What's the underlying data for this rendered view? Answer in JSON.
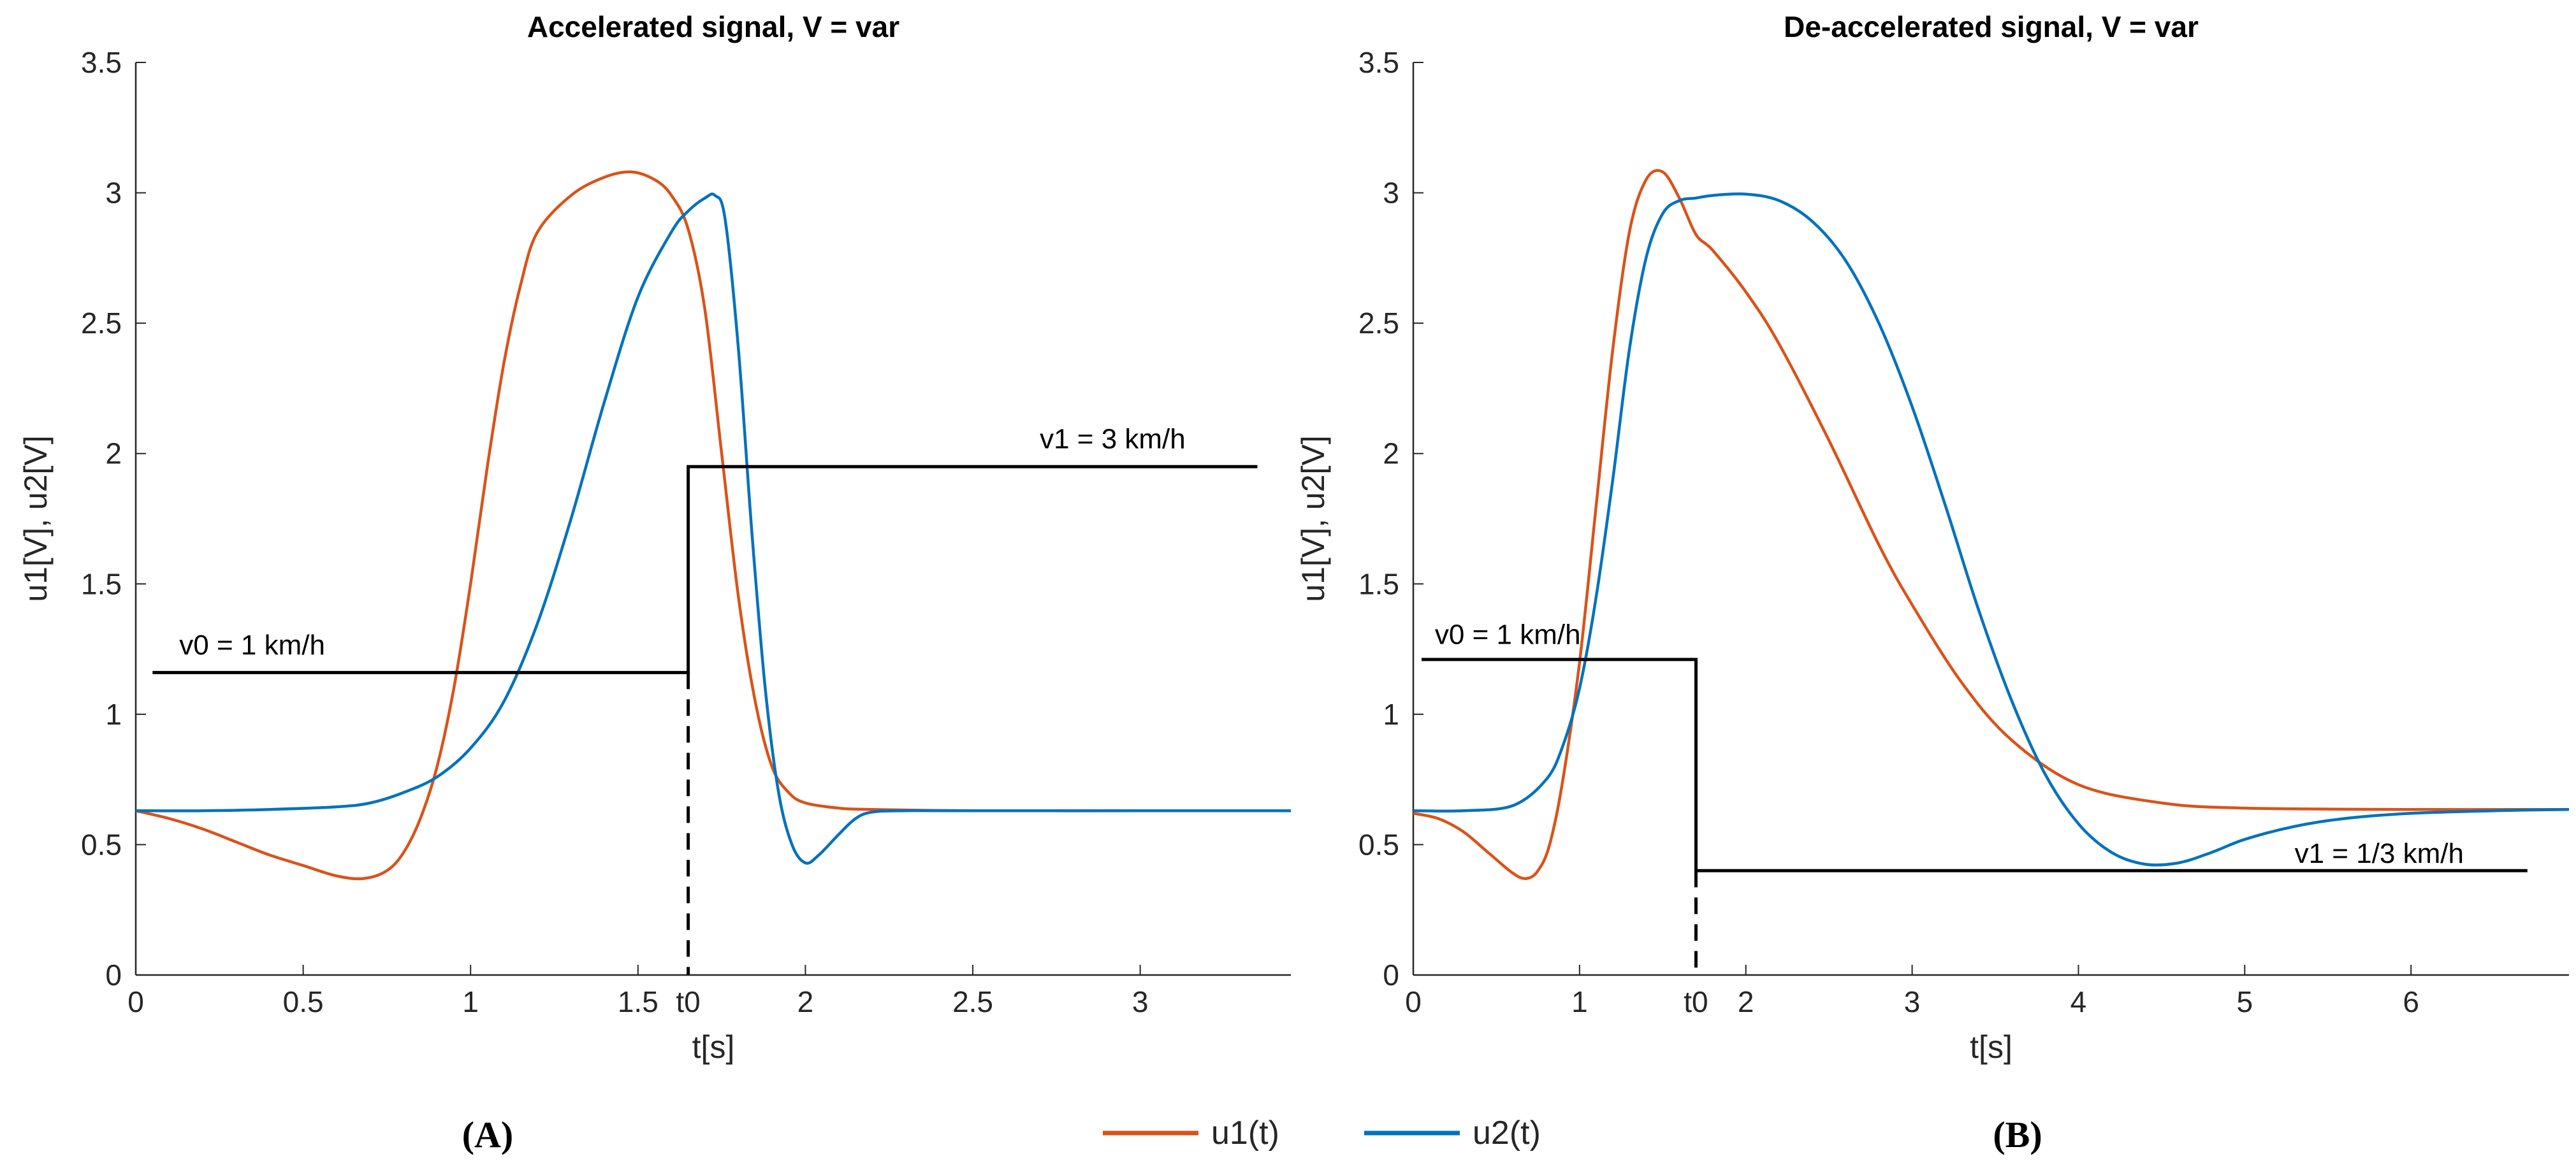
{
  "chart_data": [
    {
      "type": "line",
      "panel_label": "(A)",
      "title": "Accelerated signal, V = var",
      "xlabel": "t[s]",
      "ylabel": "u1[V], u2[V]",
      "xlim": [
        0,
        3.45
      ],
      "ylim": [
        0,
        3.5
      ],
      "xticks": [
        0,
        0.5,
        1,
        1.5,
        2,
        2.5,
        3
      ],
      "xtick_labels": [
        "0",
        "0.5",
        "1",
        "1.5",
        "2",
        "2.5",
        "3"
      ],
      "yticks": [
        0,
        0.5,
        1,
        1.5,
        2,
        2.5,
        3,
        3.5
      ],
      "ytick_labels": [
        "0",
        "0.5",
        "1",
        "1.5",
        "2",
        "2.5",
        "3",
        "3.5"
      ],
      "t0": {
        "x": 1.65,
        "label": "t0"
      },
      "series": [
        {
          "name": "u1(t)",
          "color": "#D95319",
          "x": [
            0,
            0.1,
            0.2,
            0.3,
            0.4,
            0.5,
            0.6,
            0.68,
            0.75,
            0.8,
            0.85,
            0.9,
            0.95,
            1.0,
            1.05,
            1.1,
            1.15,
            1.2,
            1.3,
            1.4,
            1.48,
            1.55,
            1.6,
            1.65,
            1.7,
            1.75,
            1.8,
            1.85,
            1.9,
            1.95,
            2.0,
            2.1,
            2.2,
            2.5,
            3.0,
            3.45
          ],
          "y": [
            0.63,
            0.6,
            0.56,
            0.51,
            0.46,
            0.42,
            0.38,
            0.37,
            0.4,
            0.47,
            0.6,
            0.8,
            1.1,
            1.5,
            1.95,
            2.35,
            2.65,
            2.85,
            2.99,
            3.06,
            3.08,
            3.05,
            2.99,
            2.86,
            2.55,
            2.0,
            1.45,
            1.05,
            0.8,
            0.7,
            0.66,
            0.64,
            0.635,
            0.63,
            0.63,
            0.63
          ]
        },
        {
          "name": "u2(t)",
          "color": "#0072BD",
          "x": [
            0,
            0.2,
            0.4,
            0.6,
            0.7,
            0.8,
            0.9,
            1.0,
            1.1,
            1.2,
            1.3,
            1.4,
            1.5,
            1.6,
            1.65,
            1.7,
            1.73,
            1.76,
            1.8,
            1.84,
            1.88,
            1.92,
            1.96,
            2.0,
            2.04,
            2.1,
            2.15,
            2.2,
            2.3,
            2.5,
            3.0,
            3.45
          ],
          "y": [
            0.63,
            0.63,
            0.635,
            0.645,
            0.66,
            0.7,
            0.76,
            0.87,
            1.05,
            1.35,
            1.75,
            2.2,
            2.6,
            2.85,
            2.93,
            2.98,
            2.99,
            2.9,
            2.4,
            1.7,
            1.1,
            0.7,
            0.5,
            0.43,
            0.46,
            0.54,
            0.6,
            0.625,
            0.63,
            0.63,
            0.63,
            0.63
          ]
        }
      ],
      "velocity_step": {
        "x": [
          0.05,
          1.65,
          1.65,
          3.35
        ],
        "y": [
          1.16,
          1.16,
          1.95,
          1.95
        ]
      },
      "annotations": [
        {
          "text": "v0 = 1 km/h",
          "x": 0.13,
          "y": 1.23
        },
        {
          "text": "v1 = 3 km/h",
          "x": 2.7,
          "y": 2.02
        }
      ]
    },
    {
      "type": "line",
      "panel_label": "(B)",
      "title": "De-accelerated signal, V = var",
      "xlabel": "t[s]",
      "ylabel": "u1[V], u2[V]",
      "xlim": [
        0,
        6.95
      ],
      "ylim": [
        0,
        3.5
      ],
      "xticks": [
        0,
        1,
        2,
        3,
        4,
        5,
        6
      ],
      "xtick_labels": [
        "0",
        "1",
        "2",
        "3",
        "4",
        "5",
        "6"
      ],
      "yticks": [
        0,
        0.5,
        1,
        1.5,
        2,
        2.5,
        3,
        3.5
      ],
      "ytick_labels": [
        "0",
        "0.5",
        "1",
        "1.5",
        "2",
        "2.5",
        "3",
        "3.5"
      ],
      "t0": {
        "x": 1.7,
        "label": "t0"
      },
      "series": [
        {
          "name": "u1(t)",
          "color": "#D95319",
          "x": [
            0,
            0.15,
            0.3,
            0.45,
            0.6,
            0.68,
            0.75,
            0.82,
            0.9,
            1.0,
            1.1,
            1.2,
            1.3,
            1.4,
            1.5,
            1.6,
            1.7,
            1.8,
            2.0,
            2.2,
            2.5,
            2.8,
            3.0,
            3.3,
            3.6,
            4.0,
            4.5,
            5.0,
            6.0,
            6.95
          ],
          "y": [
            0.62,
            0.6,
            0.55,
            0.47,
            0.39,
            0.37,
            0.4,
            0.5,
            0.75,
            1.2,
            1.8,
            2.4,
            2.85,
            3.05,
            3.08,
            2.98,
            2.84,
            2.78,
            2.62,
            2.42,
            2.05,
            1.65,
            1.42,
            1.12,
            0.9,
            0.73,
            0.66,
            0.64,
            0.635,
            0.635
          ]
        },
        {
          "name": "u2(t)",
          "color": "#0072BD",
          "x": [
            0,
            0.3,
            0.6,
            0.8,
            0.9,
            1.0,
            1.1,
            1.2,
            1.3,
            1.4,
            1.5,
            1.6,
            1.7,
            1.8,
            2.0,
            2.2,
            2.4,
            2.6,
            2.8,
            3.0,
            3.2,
            3.4,
            3.6,
            3.8,
            4.0,
            4.2,
            4.4,
            4.6,
            4.8,
            5.0,
            5.3,
            5.6,
            6.0,
            6.5,
            6.95
          ],
          "y": [
            0.63,
            0.63,
            0.65,
            0.75,
            0.88,
            1.1,
            1.45,
            1.9,
            2.4,
            2.75,
            2.92,
            2.97,
            2.98,
            2.99,
            2.995,
            2.97,
            2.89,
            2.74,
            2.5,
            2.18,
            1.8,
            1.4,
            1.05,
            0.77,
            0.58,
            0.47,
            0.425,
            0.43,
            0.47,
            0.52,
            0.57,
            0.6,
            0.62,
            0.63,
            0.635
          ]
        }
      ],
      "velocity_step": {
        "x": [
          0.05,
          1.7,
          1.7,
          6.7
        ],
        "y": [
          1.21,
          1.21,
          0.4,
          0.4
        ]
      },
      "annotations": [
        {
          "text": "v0 = 1 km/h",
          "x": 0.13,
          "y": 1.27
        },
        {
          "text": "v1 = 1/3 km/h",
          "x": 5.3,
          "y": 0.43
        }
      ]
    }
  ],
  "legend": [
    {
      "label": "u1(t)",
      "color": "#D95319"
    },
    {
      "label": "u2(t)",
      "color": "#0072BD"
    }
  ]
}
